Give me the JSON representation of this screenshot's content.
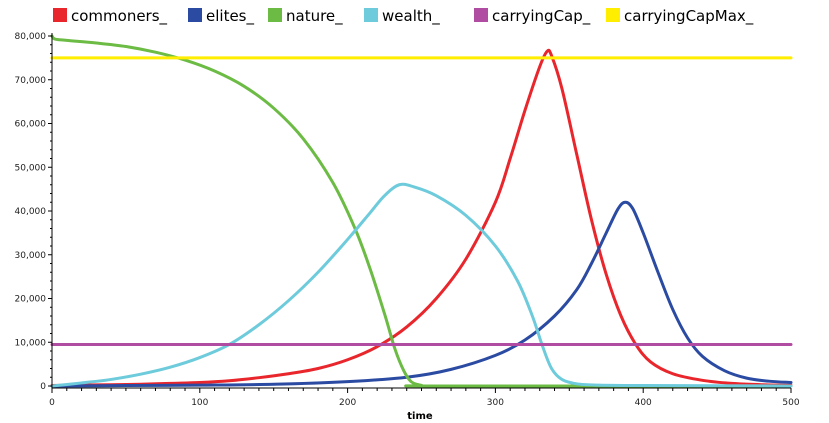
{
  "chart_data": {
    "type": "line",
    "xlabel": "time",
    "ylabel": "",
    "xlim": [
      0,
      500
    ],
    "ylim": [
      0,
      80000
    ],
    "x_ticks": [
      {
        "value": 0,
        "label": "0"
      },
      {
        "value": 100,
        "label": "100"
      },
      {
        "value": 200,
        "label": "200"
      },
      {
        "value": 300,
        "label": "300"
      },
      {
        "value": 400,
        "label": "400"
      },
      {
        "value": 500,
        "label": "500"
      }
    ],
    "y_ticks": [
      {
        "value": 0,
        "label": "0"
      },
      {
        "value": 10000,
        "label": "10,000"
      },
      {
        "value": 20000,
        "label": "20,000"
      },
      {
        "value": 30000,
        "label": "30,000"
      },
      {
        "value": 40000,
        "label": "40,000"
      },
      {
        "value": 50000,
        "label": "50,000"
      },
      {
        "value": 60000,
        "label": "60,000"
      },
      {
        "value": 70000,
        "label": "70,000"
      },
      {
        "value": 80000,
        "label": "80,000"
      }
    ],
    "grid": false,
    "legend_position": "top",
    "series": [
      {
        "name": "commoners_",
        "color": "#e8262c",
        "points": [
          [
            0,
            100
          ],
          [
            20,
            200
          ],
          [
            40,
            300
          ],
          [
            60,
            400
          ],
          [
            80,
            600
          ],
          [
            100,
            800
          ],
          [
            120,
            1200
          ],
          [
            140,
            1900
          ],
          [
            160,
            2800
          ],
          [
            180,
            4000
          ],
          [
            200,
            6000
          ],
          [
            220,
            9000
          ],
          [
            240,
            13500
          ],
          [
            260,
            20000
          ],
          [
            280,
            29000
          ],
          [
            300,
            42000
          ],
          [
            310,
            52000
          ],
          [
            320,
            63000
          ],
          [
            330,
            73000
          ],
          [
            335,
            76500
          ],
          [
            338,
            75500
          ],
          [
            345,
            68000
          ],
          [
            355,
            53000
          ],
          [
            365,
            38000
          ],
          [
            375,
            25500
          ],
          [
            385,
            16000
          ],
          [
            395,
            9500
          ],
          [
            405,
            5500
          ],
          [
            420,
            2800
          ],
          [
            440,
            1300
          ],
          [
            460,
            600
          ],
          [
            480,
            300
          ],
          [
            500,
            150
          ]
        ]
      },
      {
        "name": "elites_",
        "color": "#2b4ba3",
        "points": [
          [
            0,
            0
          ],
          [
            50,
            100
          ],
          [
            100,
            200
          ],
          [
            150,
            400
          ],
          [
            200,
            1000
          ],
          [
            240,
            2000
          ],
          [
            270,
            3800
          ],
          [
            300,
            7000
          ],
          [
            320,
            10500
          ],
          [
            340,
            16000
          ],
          [
            355,
            22000
          ],
          [
            365,
            28000
          ],
          [
            375,
            35000
          ],
          [
            383,
            40500
          ],
          [
            388,
            42000
          ],
          [
            393,
            40500
          ],
          [
            400,
            35000
          ],
          [
            410,
            26000
          ],
          [
            420,
            17500
          ],
          [
            430,
            11000
          ],
          [
            440,
            6800
          ],
          [
            455,
            3500
          ],
          [
            470,
            1800
          ],
          [
            485,
            1100
          ],
          [
            500,
            800
          ]
        ]
      },
      {
        "name": "nature_",
        "color": "#6cbb44",
        "points": [
          [
            0,
            80000
          ],
          [
            2,
            79300
          ],
          [
            10,
            79000
          ],
          [
            30,
            78400
          ],
          [
            50,
            77600
          ],
          [
            70,
            76300
          ],
          [
            90,
            74500
          ],
          [
            110,
            72000
          ],
          [
            130,
            68500
          ],
          [
            150,
            63500
          ],
          [
            170,
            56500
          ],
          [
            190,
            46500
          ],
          [
            205,
            36000
          ],
          [
            215,
            27000
          ],
          [
            225,
            16500
          ],
          [
            232,
            8500
          ],
          [
            238,
            3500
          ],
          [
            243,
            1000
          ],
          [
            250,
            150
          ],
          [
            260,
            0
          ],
          [
            500,
            0
          ]
        ]
      },
      {
        "name": "wealth_",
        "color": "#6dcbdb",
        "points": [
          [
            0,
            0
          ],
          [
            20,
            700
          ],
          [
            40,
            1500
          ],
          [
            60,
            2700
          ],
          [
            80,
            4300
          ],
          [
            100,
            6500
          ],
          [
            120,
            9500
          ],
          [
            140,
            14000
          ],
          [
            160,
            19500
          ],
          [
            180,
            26000
          ],
          [
            200,
            33500
          ],
          [
            215,
            39500
          ],
          [
            225,
            43500
          ],
          [
            235,
            46000
          ],
          [
            245,
            45500
          ],
          [
            260,
            43500
          ],
          [
            280,
            39000
          ],
          [
            300,
            32000
          ],
          [
            315,
            24000
          ],
          [
            325,
            16000
          ],
          [
            332,
            9000
          ],
          [
            338,
            4000
          ],
          [
            345,
            1500
          ],
          [
            355,
            500
          ],
          [
            370,
            200
          ],
          [
            400,
            100
          ],
          [
            500,
            0
          ]
        ]
      },
      {
        "name": "carryingCap_",
        "color": "#b04ca2",
        "points": [
          [
            0,
            9500
          ],
          [
            500,
            9500
          ]
        ]
      },
      {
        "name": "carryingCapMax_",
        "color": "#ffee00",
        "points": [
          [
            0,
            75000
          ],
          [
            500,
            75000
          ]
        ]
      }
    ]
  }
}
